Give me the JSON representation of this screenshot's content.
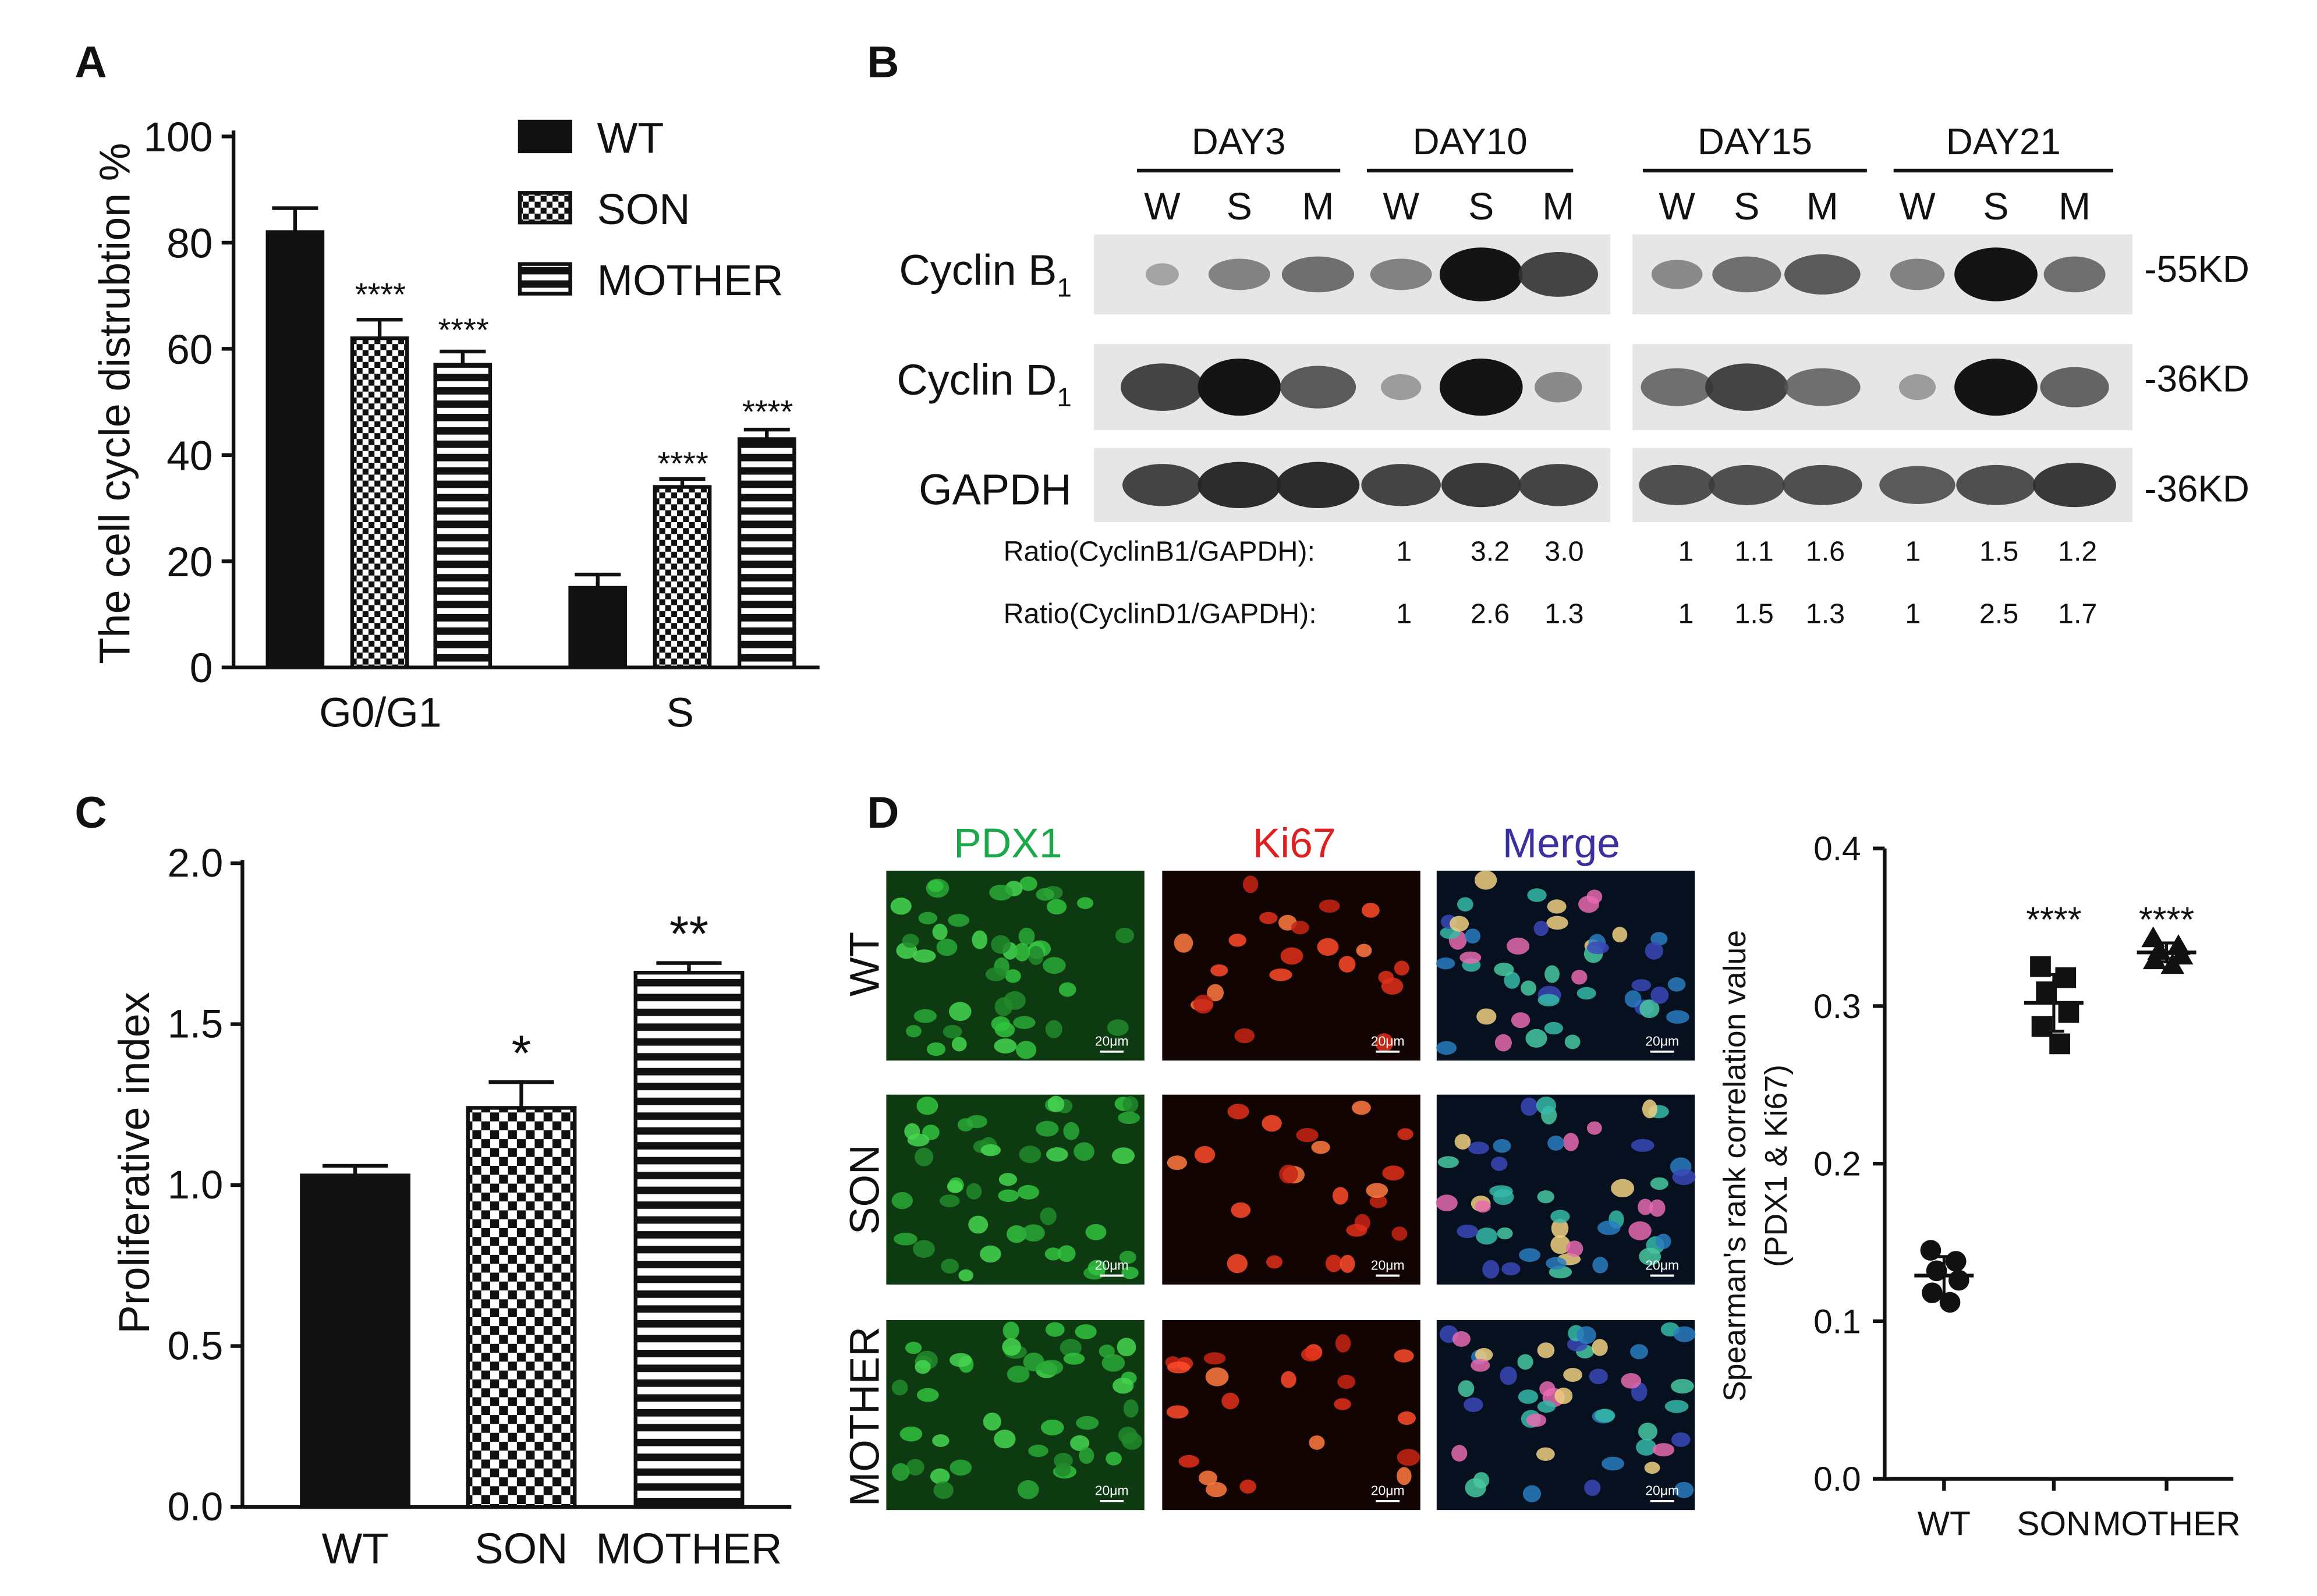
{
  "panels": {
    "A": {
      "letter": "A",
      "ylabel": "The cell cycle distrubtion %",
      "yticks": [
        "0",
        "20",
        "40",
        "60",
        "80",
        "100"
      ],
      "legend": [
        "WT",
        "SON",
        "MOTHER"
      ],
      "sig": [
        "****",
        "****",
        "****",
        "****"
      ]
    },
    "B": {
      "letter": "B",
      "days": [
        "DAY3",
        "DAY10",
        "DAY15",
        "DAY21"
      ],
      "lanes": [
        "W",
        "S",
        "M",
        "W",
        "S",
        "M",
        "W",
        "S",
        "M",
        "W",
        "S",
        "M"
      ],
      "rows": [
        {
          "label_main": "Cyclin B",
          "label_sub": "1",
          "size": "-55KD"
        },
        {
          "label_main": "Cyclin D",
          "label_sub": "1",
          "size": "-36KD"
        },
        {
          "label_main": "GAPDH",
          "label_sub": "",
          "size": "-36KD"
        }
      ],
      "ratio_b1_label": "Ratio(CyclinB1/GAPDH):",
      "ratio_b1": [
        "1",
        "3.2",
        "3.0",
        "1",
        "1.1",
        "1.6",
        "1",
        "1.5",
        "1.2"
      ],
      "ratio_d1_label": "Ratio(CyclinD1/GAPDH):",
      "ratio_d1": [
        "1",
        "2.6",
        "1.3",
        "1",
        "1.5",
        "1.3",
        "1",
        "2.5",
        "1.7"
      ]
    },
    "C": {
      "letter": "C",
      "ylabel": "Proliferative index",
      "yticks": [
        "0.0",
        "0.5",
        "1.0",
        "1.5",
        "2.0"
      ],
      "sig": [
        "",
        "*",
        "**"
      ]
    },
    "D": {
      "letter": "D",
      "channels": [
        "PDX1",
        "Ki67",
        "Merge"
      ],
      "channel_colors": [
        "#1aa84a",
        "#e02020",
        "#3c2fa0"
      ],
      "rows": [
        "WT",
        "SON",
        "MOTHER"
      ],
      "scale_label": "20μm",
      "ylabel_line1": "Spearman's rank correlation value",
      "ylabel_line2": "(PDX1 & Ki67)",
      "yticks": [
        "0.0",
        "0.1",
        "0.2",
        "0.3",
        "0.4"
      ],
      "sig": [
        "",
        "****",
        "****"
      ]
    }
  },
  "chart_data": [
    {
      "type": "bar",
      "panel": "A",
      "categories": [
        "G0/G1",
        "S"
      ],
      "ylabel": "The cell cycle distrubtion %",
      "ylim": [
        0,
        100
      ],
      "legend_position": "top-right",
      "series": [
        {
          "name": "WT",
          "values": [
            82,
            15
          ],
          "errors": [
            4.5,
            2.5
          ],
          "fill": "solid"
        },
        {
          "name": "SON",
          "values": [
            62,
            34
          ],
          "errors": [
            3.5,
            1.5
          ],
          "fill": "checker"
        },
        {
          "name": "MOTHER",
          "values": [
            57,
            43
          ],
          "errors": [
            2.5,
            1.8
          ],
          "fill": "stripes"
        }
      ]
    },
    {
      "type": "bar",
      "panel": "C",
      "categories": [
        "WT",
        "SON",
        "MOTHER"
      ],
      "values": [
        1.03,
        1.24,
        1.66
      ],
      "errors": [
        0.03,
        0.08,
        0.03
      ],
      "fills": [
        "solid",
        "checker",
        "stripes"
      ],
      "ylabel": "Proliferative index",
      "ylim": [
        0,
        2.0
      ]
    },
    {
      "type": "scatter",
      "panel": "D",
      "categories": [
        "WT",
        "SON",
        "MOTHER"
      ],
      "markers": [
        "circle",
        "square",
        "triangle"
      ],
      "points": [
        [
          0.145,
          0.138,
          0.132,
          0.126,
          0.118,
          0.112
        ],
        [
          0.325,
          0.318,
          0.309,
          0.296,
          0.287,
          0.276
        ],
        [
          0.343,
          0.338,
          0.335,
          0.332,
          0.329,
          0.326
        ]
      ],
      "means": [
        0.129,
        0.302,
        0.334
      ],
      "sds": [
        0.012,
        0.018,
        0.006
      ],
      "ylabel": "Spearman's rank correlation value (PDX1 & Ki67)",
      "ylim": [
        0,
        0.4
      ]
    }
  ]
}
